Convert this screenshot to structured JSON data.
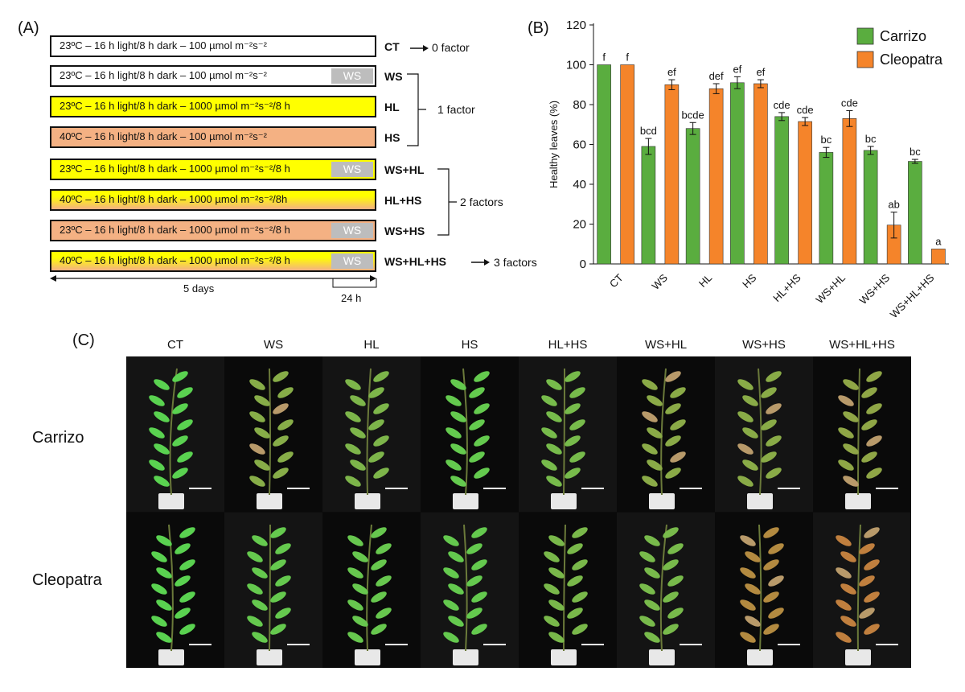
{
  "panelA": {
    "label": "(A)",
    "conditions": [
      {
        "text": "23ºC – 16 h light/8 h dark – 100 µmol m⁻²s⁻²",
        "code": "CT",
        "color": "#ffffff",
        "ws": false
      },
      {
        "text": "23ºC – 16 h light/8 h dark – 100 µmol m⁻²s⁻²",
        "code": "WS",
        "color": "#ffffff",
        "ws": true
      },
      {
        "text": "23ºC – 16 h light/8 h dark – 1000 µmol m⁻²s⁻²/8 h",
        "code": "HL",
        "color": "#ffff00",
        "ws": false
      },
      {
        "text": "40ºC – 16 h light/8 h dark – 100 µmol m⁻²s⁻²",
        "code": "HS",
        "color": "#f4b183",
        "ws": false
      },
      {
        "text": "23ºC – 16 h light/8 h dark – 1000 µmol m⁻²s⁻²/8 h",
        "code": "WS+HL",
        "color": "#ffff00",
        "ws": true
      },
      {
        "text": "40ºC – 16 h light/8 h dark – 1000 µmol m⁻²s⁻²/8h",
        "code": "HL+HS",
        "color": "gradient",
        "ws": false
      },
      {
        "text": "23ºC – 16 h light/8 h dark – 1000 µmol m⁻²s⁻²/8 h",
        "code": "WS+HS",
        "color": "#f4b183",
        "ws": true
      },
      {
        "text": "40ºC – 16 h light/8 h dark – 1000 µmol m⁻²s⁻²/8 h",
        "code": "WS+HL+HS",
        "color": "gradient",
        "ws": true
      }
    ],
    "ws_label": "WS",
    "factor0": "0 factor",
    "factor1": "1 factor",
    "factor2": "2 factors",
    "factor3": "3 factors",
    "days_label": "5 days",
    "hours_label": "24 h",
    "colors": {
      "yellow": "#ffff00",
      "salmon": "#f4b183",
      "ws_gray": "#bdbdbd"
    }
  },
  "panelB": {
    "label": "(B)"
  },
  "chart_data": {
    "type": "bar",
    "categories": [
      "CT",
      "WS",
      "HL",
      "HS",
      "HL+HS",
      "WS+HL",
      "WS+HS",
      "WS+HL+HS"
    ],
    "series": [
      {
        "name": "Carrizo",
        "color": "#5aad3f",
        "values": [
          100,
          59,
          68,
          91,
          74,
          56,
          57,
          51.5
        ],
        "errors": [
          0,
          4,
          3,
          3,
          2,
          2.5,
          2,
          1
        ],
        "letters": [
          "f",
          "bcd",
          "bcde",
          "ef",
          "cde",
          "bc",
          "bc",
          "bc"
        ]
      },
      {
        "name": "Cleopatra",
        "color": "#f5842a",
        "values": [
          100,
          90,
          88,
          90.5,
          71.5,
          73,
          19.5,
          7.5
        ],
        "errors": [
          0,
          2.5,
          2.5,
          2,
          2,
          4,
          6.5,
          0
        ],
        "letters": [
          "f",
          "ef",
          "def",
          "ef",
          "cde",
          "cde",
          "ab",
          "a"
        ]
      }
    ],
    "ylabel": "Healthy leaves (%)",
    "ylim": [
      0,
      120
    ],
    "yticks": [
      "0",
      "20",
      "40",
      "60",
      "80",
      "100",
      "120"
    ],
    "legend_position": "top-right"
  },
  "panelC": {
    "label": "(C)",
    "columns": [
      "CT",
      "WS",
      "HL",
      "HS",
      "HL+HS",
      "WS+HL",
      "WS+HS",
      "WS+HL+HS"
    ],
    "rows": [
      "Carrizo",
      "Cleopatra"
    ]
  }
}
